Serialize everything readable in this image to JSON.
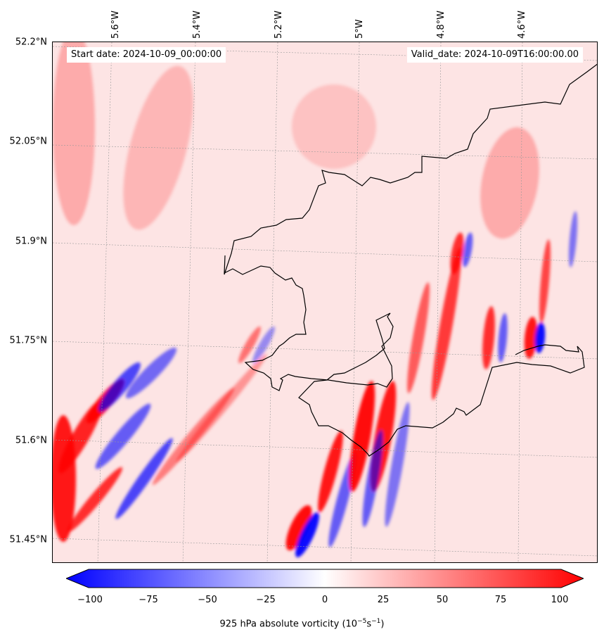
{
  "map": {
    "start_label": "Start date: 2024-10-09_00:00:00",
    "valid_label": "Valid_date: 2024-10-09T16:00:00.00",
    "lat_labels": [
      "52.2°N",
      "52.05°N",
      "51.9°N",
      "51.75°N",
      "51.6°N",
      "51.45°N"
    ],
    "lon_labels": [
      "5.6°W",
      "5.4°W",
      "5.2°W",
      "5°W",
      "4.8°W",
      "4.6°W"
    ],
    "colormap": {
      "negative": "#0000ff",
      "zero": "#ffffff",
      "positive": "#ff0000"
    }
  },
  "colorbar": {
    "ticks": [
      "−100",
      "−75",
      "−50",
      "−25",
      "0",
      "25",
      "50",
      "75",
      "100"
    ],
    "label_prefix": "925 hPa absolute vorticity (10",
    "label_exp1": "−5",
    "label_mid": "s",
    "label_exp2": "−1",
    "label_suffix": ")"
  }
}
